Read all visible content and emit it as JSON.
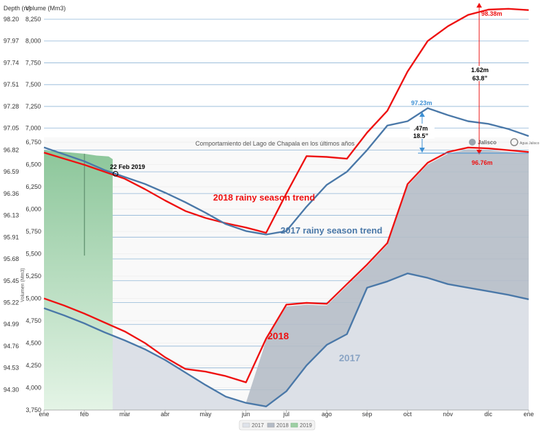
{
  "header": {
    "depth_label": "Depth (m)",
    "volume_label": "Volume (Mm3)"
  },
  "inset_title": "Comportamiento del Lago de Chapala en los últimos años",
  "inset_ylabel": "Volumen (Mm3)",
  "logos": {
    "jalisco": "Jalisco",
    "agua": "Agua Jalisco"
  },
  "colors": {
    "red": "#ee1111",
    "blue": "#4a78a8",
    "grid": "#8db4d6",
    "area2017": "#dfe3ea",
    "area2018": "#b5bcc7",
    "area2019": "#9ecfa4"
  },
  "chart_data": {
    "type": "line",
    "depth_ticks": [
      "98.20",
      "97.97",
      "97.74",
      "97.51",
      "97.28",
      "97.05",
      "96.82",
      "96.59",
      "96.36",
      "96.13",
      "95.91",
      "95.68",
      "95.45",
      "95.22",
      "94.99",
      "94.76",
      "94.53",
      "94.30"
    ],
    "upper_volume_ticks": [
      "8,250",
      "8,000",
      "7,750",
      "7,500",
      "7,250",
      "7,000",
      "6,750",
      "6,500",
      "6,250",
      "6,000",
      "5,750",
      "5,500",
      "5,250",
      "5,000",
      "4,750",
      "4,500",
      "4,250",
      "4,000",
      "3,750"
    ],
    "lower_volume_ticks": [
      "6,750",
      "6,500",
      "6,250",
      "6,000",
      "5,750",
      "5,500",
      "5,250",
      "5,000",
      "4,750",
      "4,500",
      "4,250",
      "4,000",
      "3,750"
    ],
    "months": [
      "ene",
      "feb",
      "mar",
      "abr",
      "may",
      "jun",
      "jul",
      "ago",
      "sep",
      "oct",
      "nov",
      "dic",
      "ene"
    ],
    "legend": [
      "2017",
      "2018",
      "2019"
    ],
    "series": [
      {
        "name": "2018 rainy season trend",
        "color": "red",
        "x": [
          0,
          0.5,
          1,
          1.5,
          2,
          2.5,
          3,
          3.5,
          4,
          4.5,
          5,
          5.5,
          6,
          6.5,
          7,
          7.5,
          8,
          8.5,
          9,
          9.5,
          10,
          10.5,
          11,
          11.5,
          12
        ],
        "y": [
          6720,
          6650,
          6580,
          6500,
          6420,
          6300,
          6170,
          6050,
          5970,
          5910,
          5860,
          5800,
          6250,
          6680,
          6670,
          6650,
          6950,
          7200,
          7650,
          8000,
          8170,
          8300,
          8360,
          8370,
          8355
        ]
      },
      {
        "name": "2017 rainy season trend",
        "color": "blue",
        "x": [
          0,
          0.5,
          1,
          1.5,
          2,
          2.5,
          3,
          3.5,
          4,
          4.5,
          5,
          5.5,
          6,
          6.5,
          7,
          7.5,
          8,
          8.5,
          9,
          9.5,
          10,
          10.5,
          11,
          11.5,
          12
        ],
        "y": [
          6780,
          6700,
          6620,
          6520,
          6440,
          6360,
          6260,
          6150,
          6030,
          5900,
          5820,
          5780,
          5820,
          6100,
          6350,
          6500,
          6750,
          7030,
          7080,
          7230,
          7150,
          7080,
          7050,
          6990,
          6910
        ]
      },
      {
        "name": "2018",
        "color": "red",
        "x": [
          0,
          0.5,
          1,
          1.5,
          2,
          2.5,
          3,
          3.5,
          4,
          4.5,
          5,
          5.5,
          6,
          6.5,
          7,
          7.5,
          8,
          8.5,
          9,
          9.5,
          10,
          10.5,
          11,
          11.5,
          12
        ],
        "y": [
          5000,
          4920,
          4830,
          4730,
          4630,
          4500,
          4340,
          4210,
          4180,
          4130,
          4060,
          4550,
          4930,
          4950,
          4940,
          5160,
          5380,
          5620,
          6280,
          6520,
          6640,
          6690,
          6680,
          6660,
          6640
        ]
      },
      {
        "name": "2017",
        "color": "blue",
        "x": [
          0,
          0.5,
          1,
          1.5,
          2,
          2.5,
          3,
          3.5,
          4,
          4.5,
          5,
          5.5,
          6,
          6.5,
          7,
          7.5,
          8,
          8.5,
          9,
          9.5,
          10,
          10.5,
          11,
          11.5,
          12
        ],
        "y": [
          4890,
          4810,
          4720,
          4620,
          4530,
          4430,
          4310,
          4170,
          4030,
          3900,
          3830,
          3790,
          3960,
          4250,
          4480,
          4600,
          5120,
          5190,
          5280,
          5230,
          5160,
          5120,
          5080,
          5040,
          4990
        ]
      }
    ],
    "area_2019": {
      "x": [
        0,
        0.5,
        1,
        1.3,
        1.6,
        1.7
      ],
      "y": [
        6660,
        6640,
        6620,
        6600,
        6590,
        6560
      ],
      "dip_x": 1.0,
      "dip_y": 5480
    },
    "annotations": {
      "date_label": "22 Feb 2019",
      "peak_2018": "98.38m",
      "peak_2017": "97.23m",
      "current": "96.76m",
      "diff_1": "1.62m",
      "diff_1b": "63.8”",
      "diff_2": ".47m",
      "diff_2b": "18.5”"
    }
  }
}
